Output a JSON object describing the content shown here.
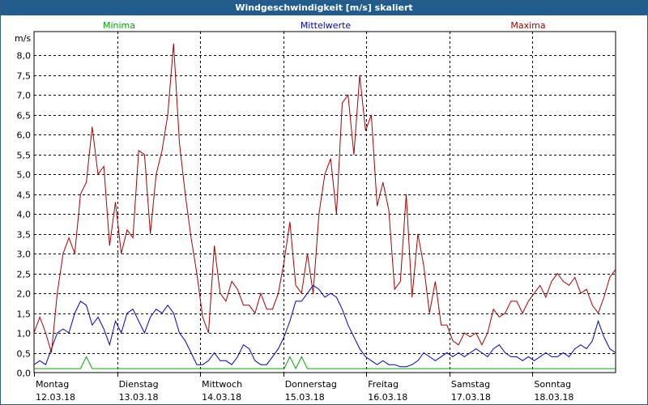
{
  "window_title": "Windgeschwindigkeit [m/s] skaliert",
  "chart_data": {
    "type": "line",
    "title": "Windgeschwindigkeit [m/s] skaliert",
    "ylabel": "m/s",
    "ylim": [
      0,
      8.6
    ],
    "yticks": [
      "0,0",
      "0,5",
      "1,0",
      "1,5",
      "2,0",
      "2,5",
      "3,0",
      "3,5",
      "4,0",
      "4,5",
      "5,0",
      "5,5",
      "6,0",
      "6,5",
      "7,0",
      "7,5",
      "8,0"
    ],
    "ytick_values": [
      0,
      0.5,
      1,
      1.5,
      2,
      2.5,
      3,
      3.5,
      4,
      4.5,
      5,
      5.5,
      6,
      6.5,
      7,
      7.5,
      8
    ],
    "xlim": [
      0,
      7
    ],
    "x_day_labels": [
      {
        "day": "Montag",
        "date": "12.03.18"
      },
      {
        "day": "Dienstag",
        "date": "13.03.18"
      },
      {
        "day": "Mittwoch",
        "date": "14.03.18"
      },
      {
        "day": "Donnerstag",
        "date": "15.03.18"
      },
      {
        "day": "Freitag",
        "date": "16.03.18"
      },
      {
        "day": "Samstag",
        "date": "17.03.18"
      },
      {
        "day": "Sonntag",
        "date": "18.03.18"
      }
    ],
    "grid": true,
    "legend_placement": "top",
    "x": [
      0.0,
      0.07,
      0.14,
      0.21,
      0.28,
      0.35,
      0.42,
      0.49,
      0.56,
      0.63,
      0.7,
      0.77,
      0.84,
      0.91,
      0.98,
      1.05,
      1.12,
      1.19,
      1.26,
      1.33,
      1.4,
      1.47,
      1.54,
      1.61,
      1.68,
      1.75,
      1.82,
      1.89,
      1.96,
      2.03,
      2.1,
      2.17,
      2.24,
      2.31,
      2.38,
      2.45,
      2.52,
      2.59,
      2.66,
      2.73,
      2.8,
      2.87,
      2.94,
      3.01,
      3.08,
      3.15,
      3.22,
      3.29,
      3.36,
      3.43,
      3.5,
      3.57,
      3.64,
      3.71,
      3.78,
      3.85,
      3.92,
      3.99,
      4.06,
      4.13,
      4.2,
      4.27,
      4.34,
      4.41,
      4.48,
      4.55,
      4.62,
      4.69,
      4.76,
      4.83,
      4.9,
      4.97,
      5.04,
      5.11,
      5.18,
      5.25,
      5.32,
      5.39,
      5.46,
      5.53,
      5.6,
      5.67,
      5.74,
      5.81,
      5.88,
      5.95,
      6.02,
      6.09,
      6.16,
      6.23,
      6.3,
      6.37,
      6.44,
      6.51,
      6.58,
      6.65,
      6.72,
      6.79,
      6.86,
      6.93,
      7.0
    ],
    "series": [
      {
        "name": "Minima",
        "color": "#00aa00",
        "values": [
          0.1,
          0.1,
          0.1,
          0.1,
          0.1,
          0.1,
          0.1,
          0.1,
          0.1,
          0.4,
          0.1,
          0.1,
          0.1,
          0.1,
          0.1,
          0.1,
          0.1,
          0.1,
          0.1,
          0.1,
          0.1,
          0.1,
          0.1,
          0.1,
          0.1,
          0.1,
          0.1,
          0.1,
          0.1,
          0.1,
          0.1,
          0.1,
          0.1,
          0.1,
          0.1,
          0.1,
          0.1,
          0.1,
          0.1,
          0.1,
          0.1,
          0.1,
          0.1,
          0.1,
          0.4,
          0.1,
          0.4,
          0.1,
          0.1,
          0.1,
          0.1,
          0.1,
          0.1,
          0.1,
          0.1,
          0.1,
          0.1,
          0.1,
          0.1,
          0.1,
          0.1,
          0.1,
          0.1,
          0.1,
          0.1,
          0.1,
          0.1,
          0.1,
          0.1,
          0.1,
          0.1,
          0.1,
          0.1,
          0.1,
          0.1,
          0.1,
          0.1,
          0.1,
          0.1,
          0.1,
          0.1,
          0.1,
          0.1,
          0.1,
          0.1,
          0.1,
          0.1,
          0.1,
          0.1,
          0.1,
          0.1,
          0.1,
          0.1,
          0.1,
          0.1,
          0.1,
          0.1,
          0.1,
          0.1,
          0.1,
          0.1
        ]
      },
      {
        "name": "Mittelwerte",
        "color": "#0000cc",
        "values": [
          0.2,
          0.3,
          0.2,
          0.6,
          1.0,
          1.1,
          1.0,
          1.5,
          1.8,
          1.7,
          1.2,
          1.4,
          1.1,
          0.7,
          1.3,
          1.0,
          1.5,
          1.6,
          1.3,
          1.0,
          1.4,
          1.6,
          1.5,
          1.7,
          1.5,
          1.0,
          0.8,
          0.5,
          0.2,
          0.2,
          0.3,
          0.5,
          0.3,
          0.3,
          0.2,
          0.4,
          0.7,
          0.6,
          0.3,
          0.2,
          0.2,
          0.4,
          0.6,
          0.9,
          1.3,
          1.8,
          1.8,
          2.0,
          2.2,
          2.1,
          1.9,
          2.0,
          1.9,
          1.6,
          1.2,
          0.9,
          0.6,
          0.4,
          0.3,
          0.2,
          0.3,
          0.2,
          0.2,
          0.15,
          0.15,
          0.2,
          0.3,
          0.5,
          0.4,
          0.3,
          0.4,
          0.5,
          0.4,
          0.5,
          0.4,
          0.5,
          0.6,
          0.5,
          0.4,
          0.6,
          0.7,
          0.5,
          0.4,
          0.4,
          0.3,
          0.4,
          0.3,
          0.4,
          0.5,
          0.4,
          0.4,
          0.5,
          0.4,
          0.6,
          0.7,
          0.6,
          0.8,
          1.3,
          0.9,
          0.6,
          0.5
        ]
      },
      {
        "name": "Maxima",
        "color": "#aa0000",
        "values": [
          1.0,
          1.4,
          1.0,
          0.5,
          2.0,
          3.0,
          3.4,
          3.0,
          4.5,
          4.8,
          6.2,
          5.0,
          5.2,
          3.2,
          4.3,
          3.0,
          3.6,
          3.4,
          5.6,
          5.5,
          3.5,
          5.0,
          5.6,
          6.5,
          8.3,
          5.8,
          4.5,
          3.4,
          2.5,
          1.4,
          1.0,
          3.2,
          2.0,
          1.8,
          2.3,
          2.1,
          1.7,
          1.7,
          1.5,
          2.0,
          1.6,
          1.6,
          2.0,
          2.8,
          3.8,
          2.2,
          2.0,
          3.0,
          2.0,
          4.0,
          5.0,
          5.4,
          4.0,
          6.8,
          7.0,
          5.5,
          7.5,
          6.1,
          6.5,
          4.2,
          4.8,
          4.1,
          2.1,
          2.3,
          4.5,
          1.9,
          3.5,
          2.7,
          1.5,
          2.3,
          1.2,
          1.2,
          0.8,
          0.7,
          1.0,
          0.9,
          1.0,
          0.7,
          1.0,
          1.6,
          1.4,
          1.5,
          1.8,
          1.8,
          1.5,
          1.8,
          2.0,
          2.2,
          1.9,
          2.3,
          2.5,
          2.3,
          2.2,
          2.4,
          2.0,
          2.1,
          1.7,
          1.5,
          1.9,
          2.4,
          2.6
        ]
      }
    ]
  }
}
